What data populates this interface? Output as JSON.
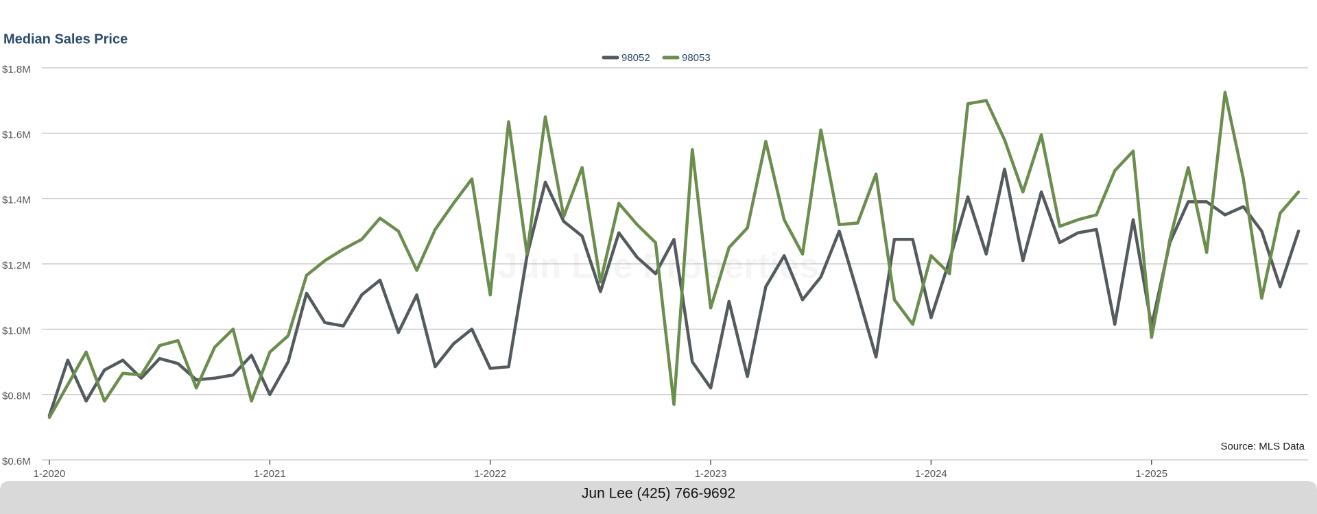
{
  "chart_data": {
    "type": "line",
    "title": "Median Sales Price",
    "watermark": "Jun Lee Properties",
    "source": "Source: MLS Data",
    "footer": "Jun Lee (425) 766-9692",
    "categories": [
      "1-2020",
      null,
      null,
      null,
      null,
      null,
      null,
      null,
      null,
      null,
      null,
      null,
      "1-2021",
      null,
      null,
      null,
      null,
      null,
      null,
      null,
      null,
      null,
      null,
      null,
      "1-2022",
      null,
      null,
      null,
      null,
      null,
      null,
      null,
      null,
      null,
      null,
      null,
      "1-2023",
      null,
      null,
      null,
      null,
      null,
      null,
      null,
      null,
      null,
      null,
      null,
      "1-2024",
      null,
      null,
      null,
      null,
      null,
      null,
      null,
      null,
      null,
      null,
      null,
      "1-2025",
      null,
      null,
      null,
      null,
      null,
      null,
      null,
      null
    ],
    "series": [
      {
        "name": "98052",
        "color": "#545b5e",
        "values": [
          735000,
          905000,
          780000,
          875000,
          905000,
          850000,
          910000,
          895000,
          845000,
          850000,
          860000,
          920000,
          800000,
          900000,
          1110000,
          1020000,
          1010000,
          1105000,
          1150000,
          990000,
          1105000,
          885000,
          955000,
          1000000,
          880000,
          885000,
          1225000,
          1450000,
          1330000,
          1285000,
          1115000,
          1295000,
          1220000,
          1170000,
          1275000,
          900000,
          820000,
          1085000,
          855000,
          1130000,
          1225000,
          1090000,
          1160000,
          1300000,
          1110000,
          915000,
          1275000,
          1275000,
          1035000,
          1210000,
          1405000,
          1230000,
          1490000,
          1210000,
          1420000,
          1265000,
          1295000,
          1305000,
          1015000,
          1335000,
          1010000,
          1265000,
          1390000,
          1390000,
          1350000,
          1375000,
          1300000,
          1130000,
          1300000
        ]
      },
      {
        "name": "98053",
        "color": "#6b8e4e",
        "values": [
          730000,
          830000,
          930000,
          780000,
          865000,
          860000,
          950000,
          965000,
          820000,
          945000,
          1000000,
          780000,
          930000,
          980000,
          1165000,
          1210000,
          1245000,
          1275000,
          1340000,
          1300000,
          1180000,
          1305000,
          1385000,
          1460000,
          1105000,
          1635000,
          1230000,
          1650000,
          1345000,
          1495000,
          1145000,
          1385000,
          1320000,
          1265000,
          770000,
          1550000,
          1065000,
          1250000,
          1310000,
          1575000,
          1335000,
          1230000,
          1610000,
          1320000,
          1325000,
          1475000,
          1090000,
          1015000,
          1225000,
          1170000,
          1690000,
          1700000,
          1580000,
          1420000,
          1595000,
          1315000,
          1335000,
          1350000,
          1485000,
          1545000,
          975000,
          1275000,
          1495000,
          1235000,
          1725000,
          1460000,
          1095000,
          1355000,
          1420000
        ]
      }
    ],
    "ylim": [
      600000,
      1800000
    ],
    "yticks": [
      {
        "value": 600000,
        "label": "$0.6M"
      },
      {
        "value": 800000,
        "label": "$0.8M"
      },
      {
        "value": 1000000,
        "label": "$1.0M"
      },
      {
        "value": 1200000,
        "label": "$1.2M"
      },
      {
        "value": 1400000,
        "label": "$1.4M"
      },
      {
        "value": 1600000,
        "label": "$1.6M"
      },
      {
        "value": 1800000,
        "label": "$1.8M"
      }
    ],
    "grid": true,
    "legend": "top"
  }
}
